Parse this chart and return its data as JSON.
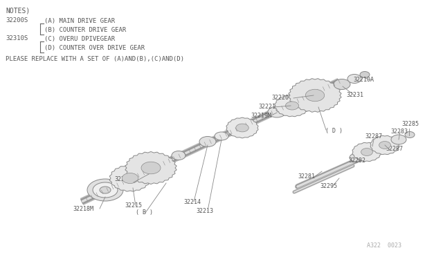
{
  "bg_color": "#ffffff",
  "notes_text": "NOTES)",
  "label_32200S": "32200S",
  "label_32310S": "32310S",
  "item_A": "(A) MAIN DRIVE GEAR",
  "item_B": "(B) COUNTER DRIVE GEAR",
  "item_C": "(C) OVERU DPIVEGEAR",
  "item_D": "(D) COUNTER OVER DRIVE GEAR",
  "replace_text": "PLEASE REPLACE WITH A SET OF (A)AND(B),(C)AND(D)",
  "footer_text": "A322  0023",
  "font_color": "#555555",
  "line_color": "#888888",
  "dark_line": "#666666",
  "gear_face": "#e8e8e8",
  "gear_edge": "#888888",
  "shaft_color": "#999999",
  "shaft_dark": "#777777"
}
